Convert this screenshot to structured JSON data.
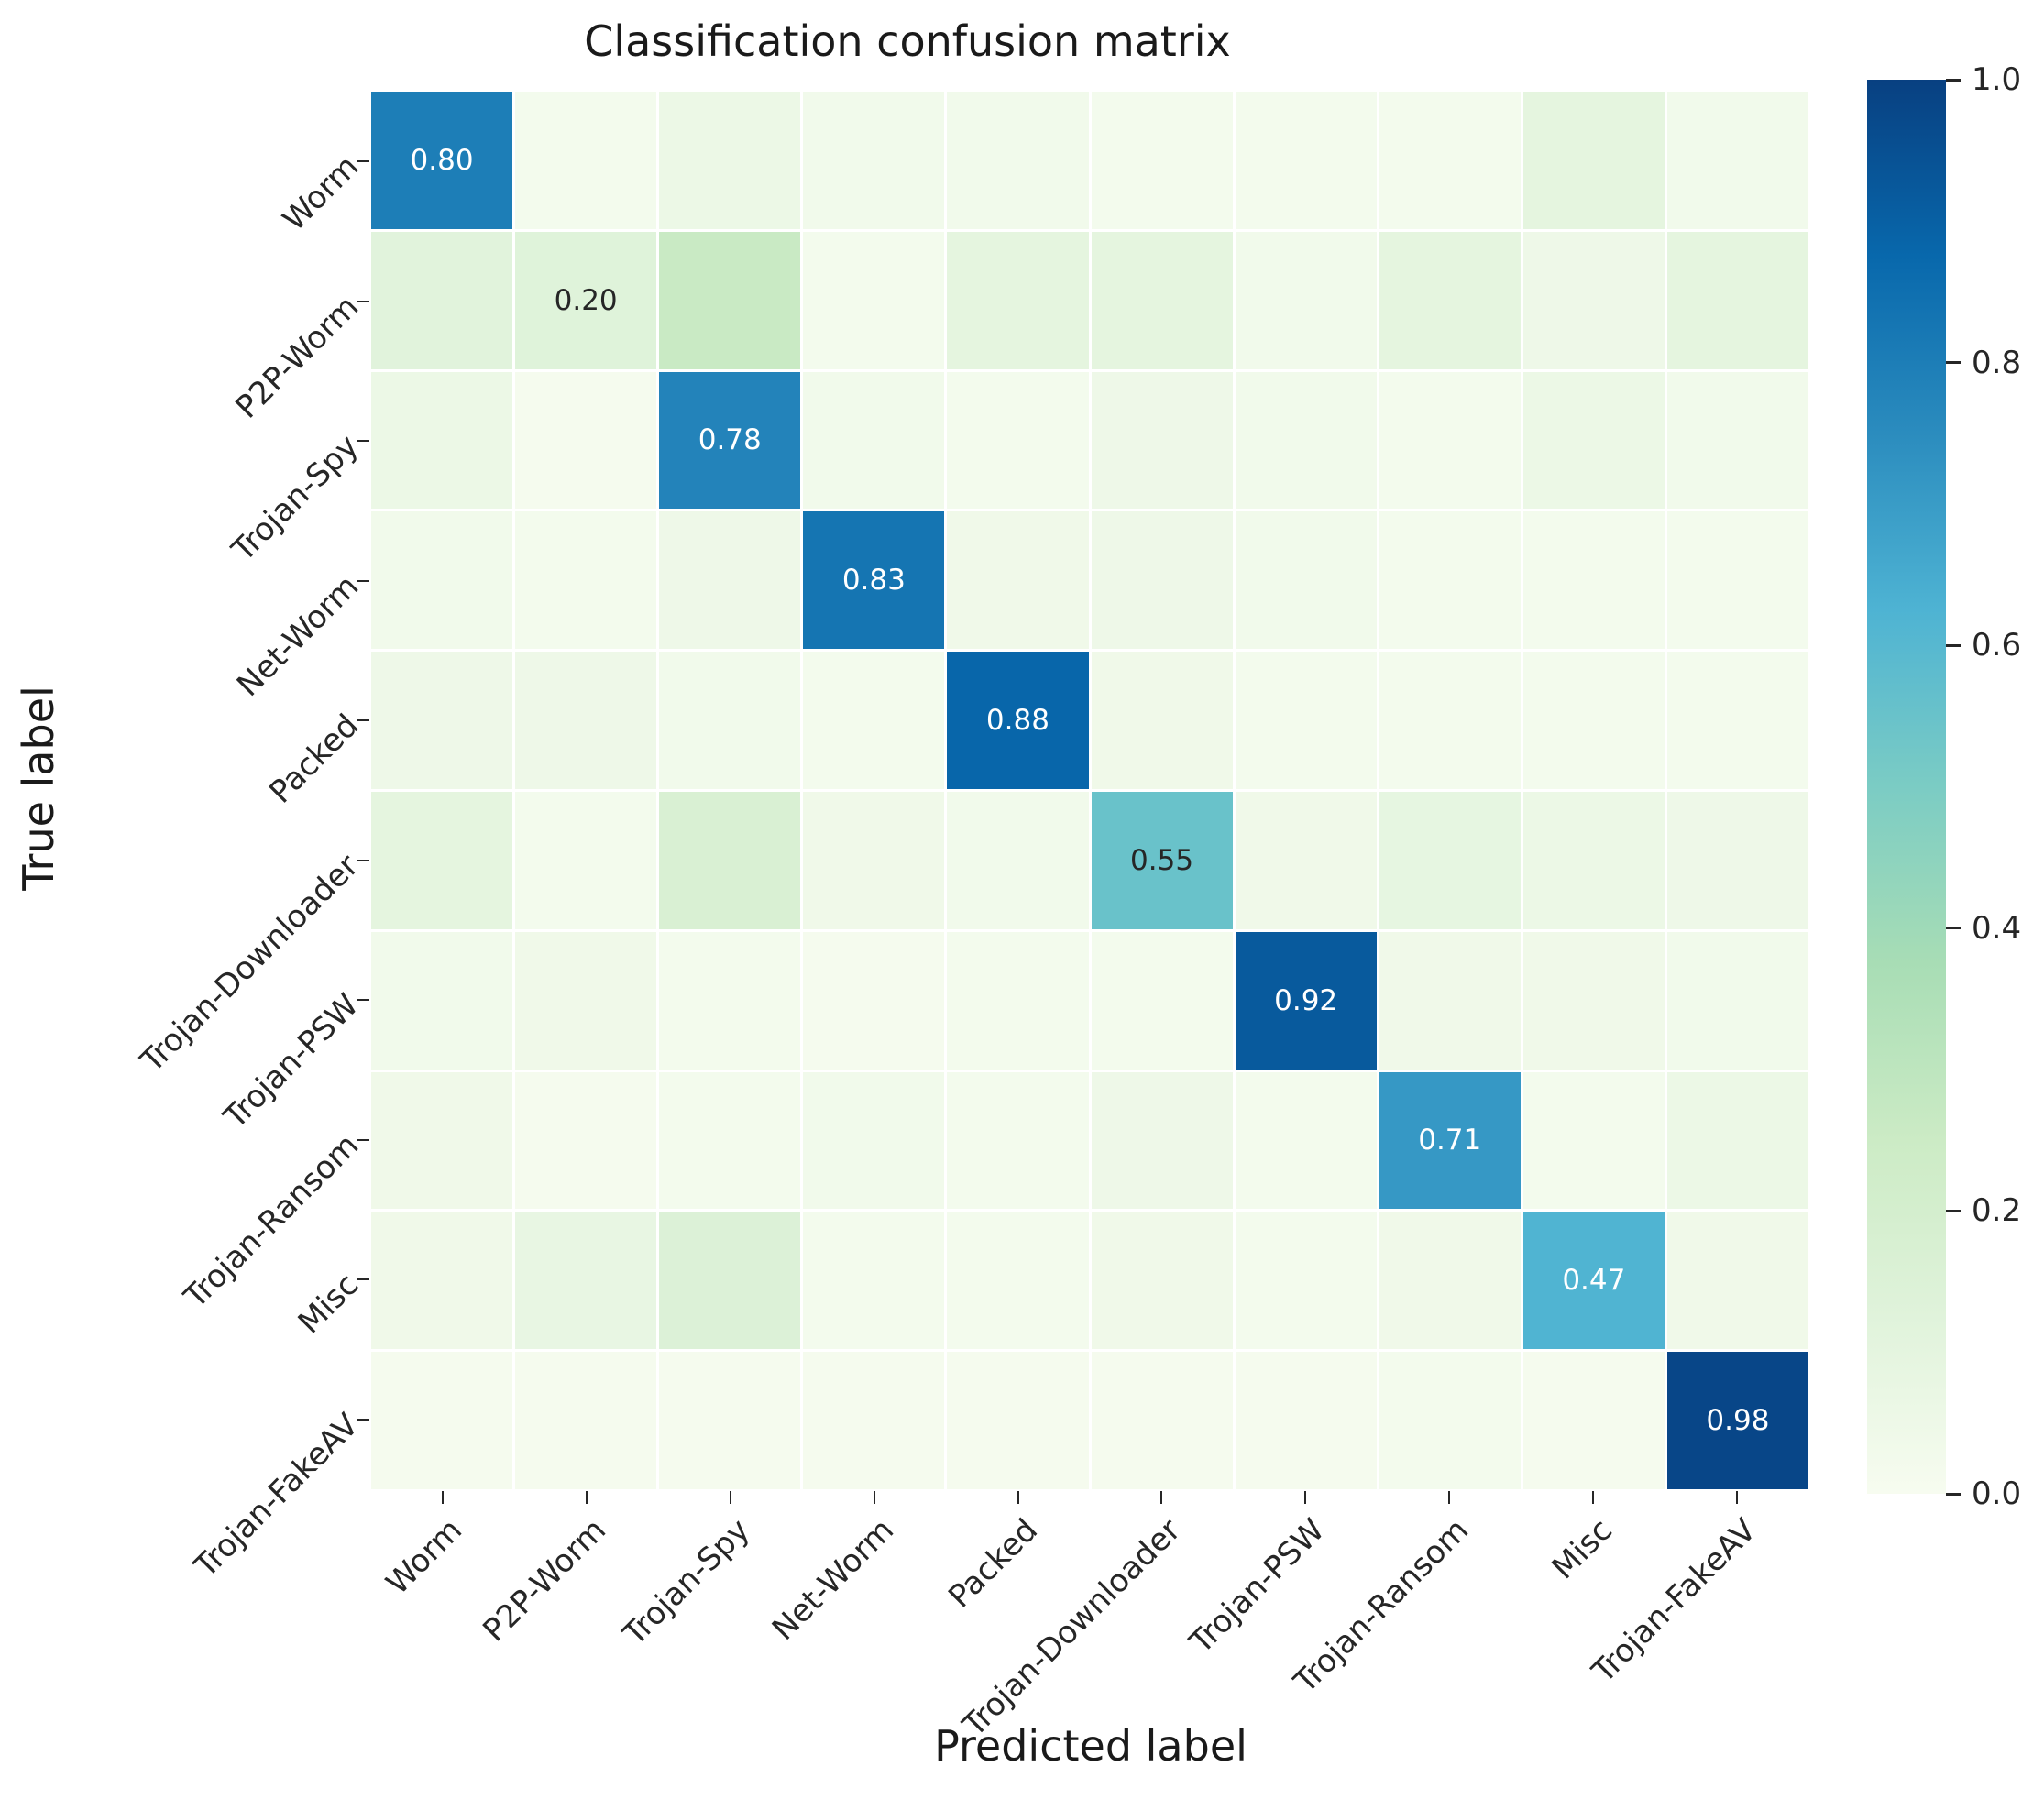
{
  "figure": {
    "title": "Classification confusion matrix",
    "xlabel": "Predicted label",
    "ylabel": "True label"
  },
  "chart_data": {
    "type": "heatmap",
    "title": "Classification confusion matrix",
    "xlabel": "Predicted label",
    "ylabel": "True label",
    "categories": [
      "Worm",
      "P2P-Worm",
      "Trojan-Spy",
      "Net-Worm",
      "Packed",
      "Trojan-Downloader",
      "Trojan-PSW",
      "Trojan-Ransom",
      "Misc",
      "Trojan-FakeAV"
    ],
    "matrix": [
      [
        0.8,
        0.02,
        0.06,
        0.03,
        0.03,
        0.02,
        0.02,
        0.02,
        0.1,
        0.03
      ],
      [
        0.12,
        0.2,
        0.26,
        0.02,
        0.1,
        0.1,
        0.03,
        0.1,
        0.05,
        0.1
      ],
      [
        0.06,
        0.01,
        0.78,
        0.03,
        0.02,
        0.05,
        0.03,
        0.02,
        0.06,
        0.03
      ],
      [
        0.03,
        0.02,
        0.05,
        0.83,
        0.04,
        0.05,
        0.03,
        0.02,
        0.02,
        0.02
      ],
      [
        0.05,
        0.05,
        0.03,
        0.02,
        0.88,
        0.04,
        0.02,
        0.02,
        0.02,
        0.02
      ],
      [
        0.1,
        0.02,
        0.17,
        0.04,
        0.03,
        0.55,
        0.04,
        0.09,
        0.06,
        0.05
      ],
      [
        0.03,
        0.04,
        0.02,
        0.01,
        0.02,
        0.02,
        0.92,
        0.04,
        0.04,
        0.03
      ],
      [
        0.04,
        0.01,
        0.02,
        0.03,
        0.02,
        0.05,
        0.02,
        0.71,
        0.02,
        0.06
      ],
      [
        0.04,
        0.08,
        0.15,
        0.02,
        0.02,
        0.04,
        0.02,
        0.04,
        0.47,
        0.04
      ],
      [
        0.01,
        0.01,
        0.01,
        0.01,
        0.01,
        0.01,
        0.01,
        0.02,
        0.01,
        0.98
      ]
    ],
    "annotations": {
      "shown_on": "diagonal",
      "values": [
        "0.80",
        "0.20",
        "0.78",
        "0.83",
        "0.88",
        "0.55",
        "0.92",
        "0.71",
        "0.47",
        "0.98"
      ]
    },
    "colormap": "GnBu",
    "vmin": 0.0,
    "vmax": 1.0,
    "grid": false,
    "colorbar": {
      "position": "right",
      "tick_labels": [
        "1.0",
        "0.8",
        "0.6",
        "0.4",
        "0.2",
        "0.0"
      ],
      "tick_values": [
        1.0,
        0.8,
        0.6,
        0.4,
        0.2,
        0.0
      ]
    },
    "cell_color_overrides": {
      "1,1": 0.13,
      "8,8": 0.62
    }
  },
  "colors": {
    "background": "#ffffff",
    "text": "#262626",
    "annotation_on_dark": "#ffffff",
    "annotation_on_light": "#262626",
    "gnbu_stops": [
      [
        0.0,
        "#f7fcf0"
      ],
      [
        0.125,
        "#e0f3db"
      ],
      [
        0.25,
        "#ccebc5"
      ],
      [
        0.375,
        "#a8ddb5"
      ],
      [
        0.5,
        "#7bccc4"
      ],
      [
        0.625,
        "#4eb3d3"
      ],
      [
        0.75,
        "#2b8cbe"
      ],
      [
        0.875,
        "#0868ac"
      ],
      [
        1.0,
        "#084081"
      ]
    ]
  }
}
